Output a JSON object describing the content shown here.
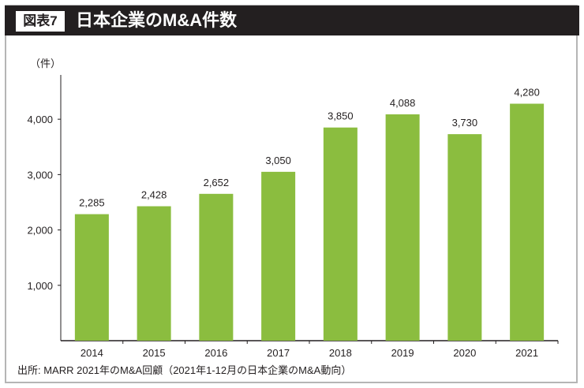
{
  "header": {
    "tag": "図表7",
    "title": "日本企業のM&A件数"
  },
  "unit_label": "（件）",
  "source": "出所: MARR 2021年のM&A回顧（2021年1-12月の日本企業のM&A動向）",
  "chart_data": {
    "type": "bar",
    "title": "日本企業のM&A件数",
    "categories": [
      "2014",
      "2015",
      "2016",
      "2017",
      "2018",
      "2019",
      "2020",
      "2021"
    ],
    "values": [
      2285,
      2428,
      2652,
      3050,
      3850,
      4088,
      3730,
      4280
    ],
    "data_labels": [
      "2,285",
      "2,428",
      "2,652",
      "3,050",
      "3,850",
      "4,088",
      "3,730",
      "4,280"
    ],
    "ylabel": "（件）",
    "xlabel": "",
    "ylim": [
      0,
      4800
    ],
    "yticks": [
      1000,
      2000,
      3000,
      4000
    ],
    "ytick_labels": [
      "1,000",
      "2,000",
      "3,000",
      "4,000"
    ],
    "grid": false,
    "bar_color": "#8bbd3f"
  }
}
